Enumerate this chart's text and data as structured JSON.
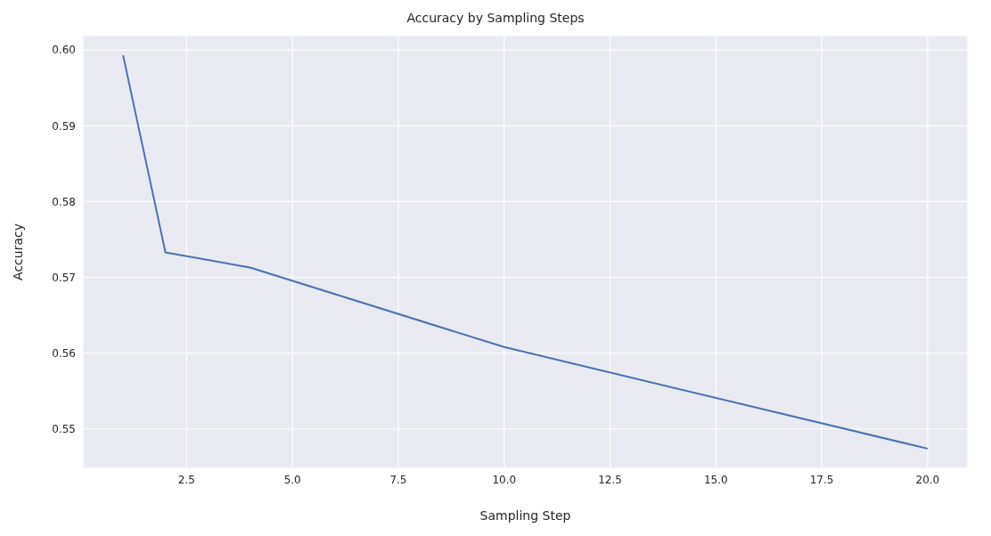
{
  "chart_data": {
    "type": "line",
    "title": "Accuracy by Sampling Steps",
    "xlabel": "Sampling Step",
    "ylabel": "Accuracy",
    "x": [
      1,
      2,
      4,
      10,
      20
    ],
    "series": [
      {
        "color": "#4c72b0",
        "values": [
          0.5993,
          0.5733,
          0.5713,
          0.5608,
          0.5474
        ]
      }
    ],
    "xlim": [
      0.05,
      20.95
    ],
    "xticks": [
      {
        "value": 2.5,
        "label": "2.5"
      },
      {
        "value": 5,
        "label": "5.0"
      },
      {
        "value": 7.5,
        "label": "7.5"
      },
      {
        "value": 10,
        "label": "10.0"
      },
      {
        "value": 12.5,
        "label": "12.5"
      },
      {
        "value": 15,
        "label": "15.0"
      },
      {
        "value": 17.5,
        "label": "17.5"
      },
      {
        "value": 20,
        "label": "20.0"
      }
    ],
    "ylim": [
      0.5448,
      0.6019
    ],
    "yticks": [
      {
        "value": 0.55,
        "label": "0.55"
      },
      {
        "value": 0.56,
        "label": "0.56"
      },
      {
        "value": 0.57,
        "label": "0.57"
      },
      {
        "value": 0.58,
        "label": "0.58"
      },
      {
        "value": 0.59,
        "label": "0.59"
      },
      {
        "value": 0.6,
        "label": "0.60"
      }
    ],
    "grid": true,
    "legend": false,
    "marker": "none",
    "line_style": "solid"
  }
}
